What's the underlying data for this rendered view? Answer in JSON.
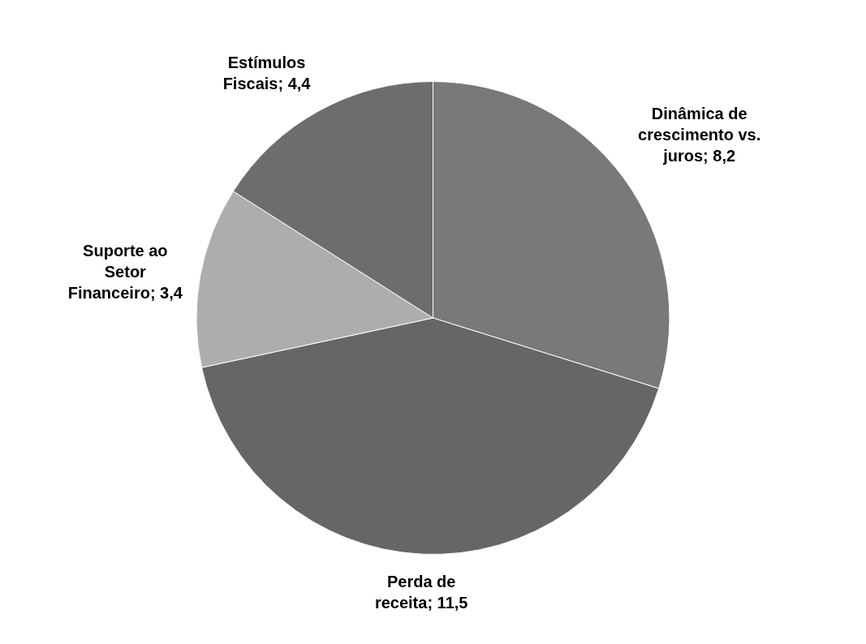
{
  "chart_data": {
    "type": "pie",
    "categories": [
      "Dinâmica de crescimento vs. juros",
      "Perda de receita",
      "Suporte ao Setor Financeiro",
      "Estímulos Fiscais"
    ],
    "values": [
      8.2,
      11.5,
      3.4,
      4.4
    ],
    "value_labels": [
      "; 8,2",
      "; 11,5",
      "; 3,4",
      "; 4,4"
    ],
    "colors": [
      "#7a7977",
      "#676664",
      "#adadac",
      "#6e6c6d"
    ],
    "legend": false
  }
}
